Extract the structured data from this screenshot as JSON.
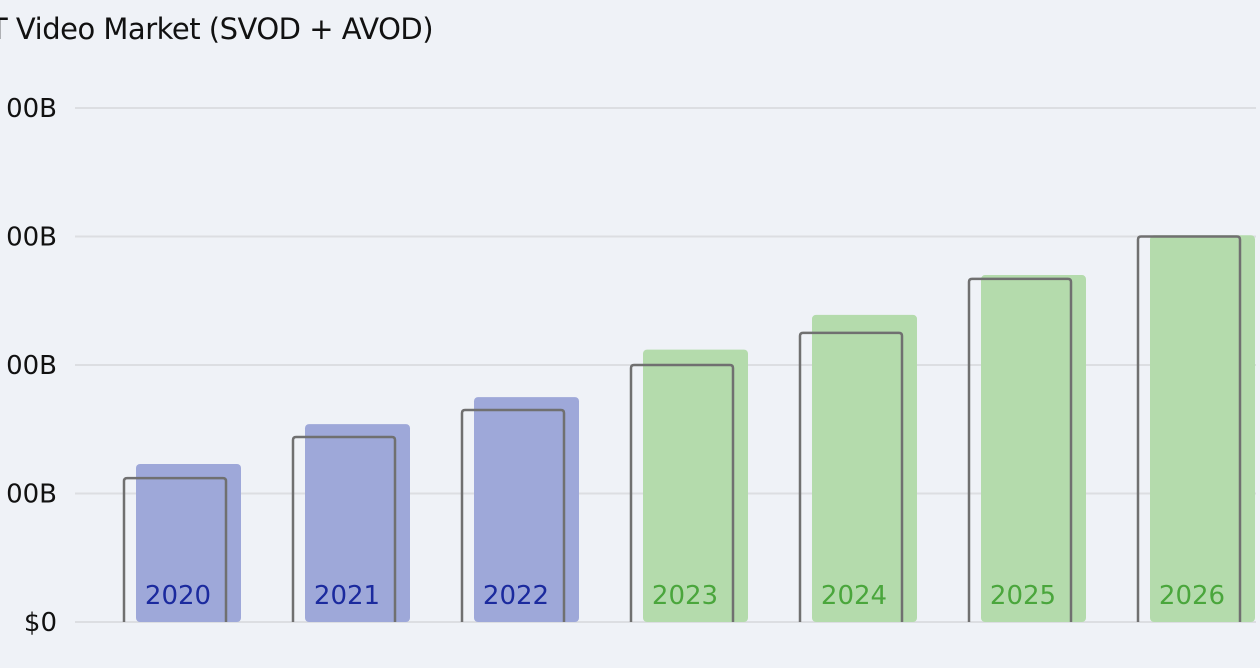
{
  "chart_data": {
    "type": "bar",
    "title": "T Video Market (SVOD + AVOD)",
    "categories": [
      "2020",
      "2021",
      "2022",
      "2023",
      "2024",
      "2025",
      "2026"
    ],
    "series": [
      {
        "values": [
          123,
          154,
          175,
          212,
          239,
          270,
          301
        ]
      },
      {
        "values": [
          112,
          144,
          165,
          200,
          225,
          267,
          300
        ]
      }
    ],
    "y_ticks": [
      {
        "value": 0,
        "label": "$0"
      },
      {
        "value": 100,
        "label": "00B"
      },
      {
        "value": 200,
        "label": "00B"
      },
      {
        "value": 300,
        "label": "00B"
      },
      {
        "value": 400,
        "label": "00B"
      }
    ],
    "ylim": [
      0,
      400
    ],
    "grid": true,
    "colors": {
      "historical_fill": "#9ea8d9",
      "historical_label": "#1b2a9e",
      "forecast_fill": "#b4dbac",
      "forecast_label": "#4aa63c",
      "outline": "#707070",
      "grid": "#dcdee2",
      "background": "#eff2f7"
    },
    "historical_count": 3
  }
}
